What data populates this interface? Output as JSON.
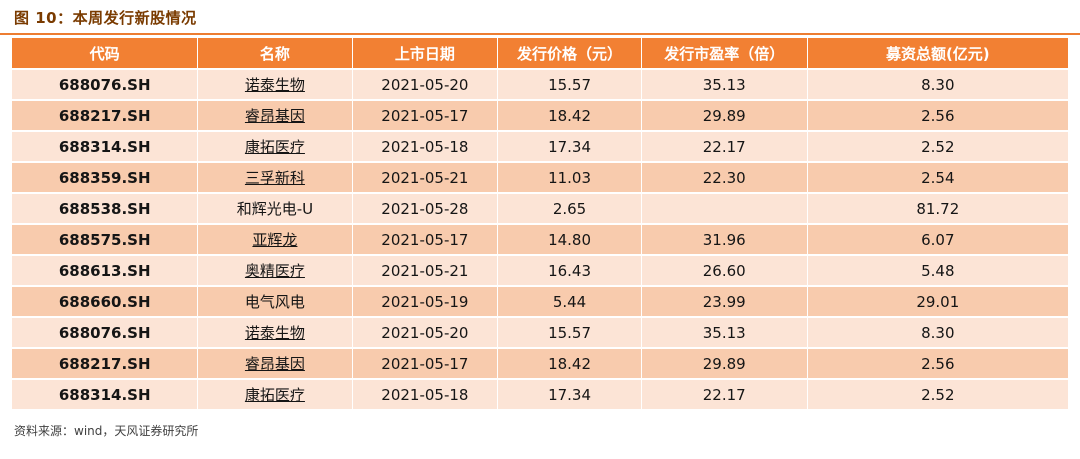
{
  "title": "图 10：本周发行新股情况",
  "source": "资料来源：wind，天风证券研究所",
  "colors": {
    "header_bg": "#F28033",
    "row_light": "#FCE4D6",
    "row_dark": "#F8CBAD",
    "title_color": "#7A3B00",
    "rule_color": "#ED7D31"
  },
  "table": {
    "columns": [
      "代码",
      "名称",
      "上市日期",
      "发行价格（元）",
      "发行市盈率（倍）",
      "募资总额(亿元)"
    ],
    "rows": [
      {
        "code": "688076.SH",
        "name": "诺泰生物",
        "date": "2021-05-20",
        "price": "15.57",
        "pe": "35.13",
        "raised": "8.30",
        "name_underline": true
      },
      {
        "code": "688217.SH",
        "name": "睿昂基因",
        "date": "2021-05-17",
        "price": "18.42",
        "pe": "29.89",
        "raised": "2.56",
        "name_underline": true
      },
      {
        "code": "688314.SH",
        "name": "康拓医疗",
        "date": "2021-05-18",
        "price": "17.34",
        "pe": "22.17",
        "raised": "2.52",
        "name_underline": true
      },
      {
        "code": "688359.SH",
        "name": "三孚新科",
        "date": "2021-05-21",
        "price": "11.03",
        "pe": "22.30",
        "raised": "2.54",
        "name_underline": true
      },
      {
        "code": "688538.SH",
        "name": "和辉光电-U",
        "date": "2021-05-28",
        "price": "2.65",
        "pe": "",
        "raised": "81.72",
        "name_underline": false
      },
      {
        "code": "688575.SH",
        "name": "亚辉龙",
        "date": "2021-05-17",
        "price": "14.80",
        "pe": "31.96",
        "raised": "6.07",
        "name_underline": true
      },
      {
        "code": "688613.SH",
        "name": "奥精医疗",
        "date": "2021-05-21",
        "price": "16.43",
        "pe": "26.60",
        "raised": "5.48",
        "name_underline": true
      },
      {
        "code": "688660.SH",
        "name": "电气风电",
        "date": "2021-05-19",
        "price": "5.44",
        "pe": "23.99",
        "raised": "29.01",
        "name_underline": false
      },
      {
        "code": "688076.SH",
        "name": "诺泰生物",
        "date": "2021-05-20",
        "price": "15.57",
        "pe": "35.13",
        "raised": "8.30",
        "name_underline": true
      },
      {
        "code": "688217.SH",
        "name": "睿昂基因",
        "date": "2021-05-17",
        "price": "18.42",
        "pe": "29.89",
        "raised": "2.56",
        "name_underline": true
      },
      {
        "code": "688314.SH",
        "name": "康拓医疗",
        "date": "2021-05-18",
        "price": "17.34",
        "pe": "22.17",
        "raised": "2.52",
        "name_underline": true
      }
    ]
  }
}
